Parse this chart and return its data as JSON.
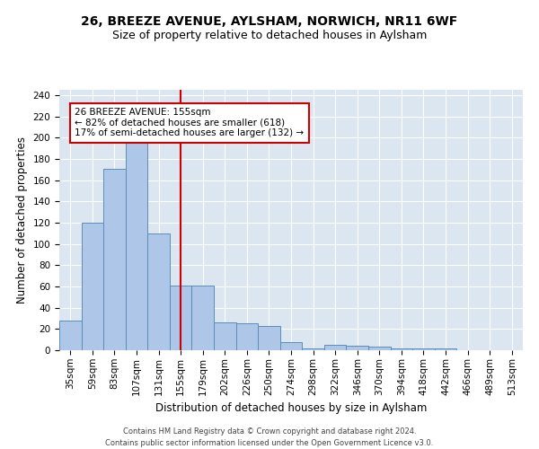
{
  "title1": "26, BREEZE AVENUE, AYLSHAM, NORWICH, NR11 6WF",
  "title2": "Size of property relative to detached houses in Aylsham",
  "xlabel": "Distribution of detached houses by size in Aylsham",
  "ylabel": "Number of detached properties",
  "footnote": "Contains HM Land Registry data © Crown copyright and database right 2024.\nContains public sector information licensed under the Open Government Licence v3.0.",
  "categories": [
    "35sqm",
    "59sqm",
    "83sqm",
    "107sqm",
    "131sqm",
    "155sqm",
    "179sqm",
    "202sqm",
    "226sqm",
    "250sqm",
    "274sqm",
    "298sqm",
    "322sqm",
    "346sqm",
    "370sqm",
    "394sqm",
    "418sqm",
    "442sqm",
    "466sqm",
    "489sqm",
    "513sqm"
  ],
  "values": [
    28,
    120,
    171,
    196,
    110,
    61,
    61,
    26,
    25,
    23,
    8,
    2,
    5,
    4,
    3,
    2,
    2,
    2,
    0,
    0,
    0
  ],
  "bar_color": "#aec6e8",
  "bar_edge_color": "#5b8db8",
  "highlight_index": 5,
  "highlight_line_color": "#cc0000",
  "annotation_text": "26 BREEZE AVENUE: 155sqm\n← 82% of detached houses are smaller (618)\n17% of semi-detached houses are larger (132) →",
  "annotation_box_color": "#ffffff",
  "annotation_box_edge_color": "#cc0000",
  "ylim": [
    0,
    245
  ],
  "yticks": [
    0,
    20,
    40,
    60,
    80,
    100,
    120,
    140,
    160,
    180,
    200,
    220,
    240
  ],
  "bg_color": "#dce6f0",
  "fig_bg_color": "#ffffff",
  "title1_fontsize": 10,
  "title2_fontsize": 9,
  "xlabel_fontsize": 8.5,
  "ylabel_fontsize": 8.5,
  "tick_fontsize": 7.5,
  "annotation_fontsize": 7.5,
  "footnote_fontsize": 6
}
